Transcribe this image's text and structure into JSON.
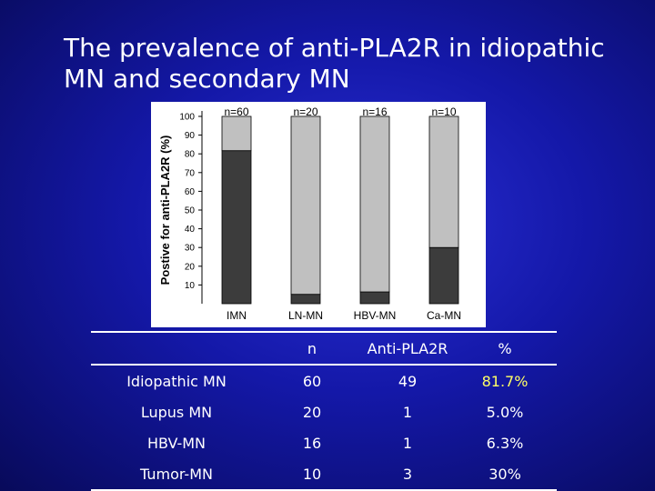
{
  "title": "The prevalence of anti-PLA2R in idiopathic MN and secondary MN",
  "chart_data": {
    "type": "bar",
    "stacked": true,
    "ylabel": "Postive for anti-PLA2R (%)",
    "ylim": [
      0,
      100
    ],
    "yticks": [
      10,
      20,
      30,
      40,
      50,
      60,
      70,
      80,
      90,
      100
    ],
    "categories": [
      "IMN",
      "LN-MN",
      "HBV-MN",
      "Ca-MN"
    ],
    "bar_labels": [
      "n=60",
      "n=20",
      "n=16",
      "n=10"
    ],
    "series": [
      {
        "values": [
          81.7,
          5.0,
          6.3,
          30.0
        ],
        "color": "#3c3c3c"
      },
      {
        "values": [
          18.3,
          95.0,
          93.7,
          70.0
        ],
        "color": "#c0c0c0"
      }
    ],
    "grid": false
  },
  "table": {
    "headers": [
      "",
      "n",
      "Anti-PLA2R",
      "%"
    ],
    "rows": [
      [
        "Idiopathic MN",
        "60",
        "49",
        "81.7%"
      ],
      [
        "Lupus MN",
        "20",
        "1",
        "5.0%"
      ],
      [
        "HBV-MN",
        "16",
        "1",
        "6.3%"
      ],
      [
        "Tumor-MN",
        "10",
        "3",
        "30%"
      ]
    ],
    "highlight_color": "#ffff66"
  }
}
